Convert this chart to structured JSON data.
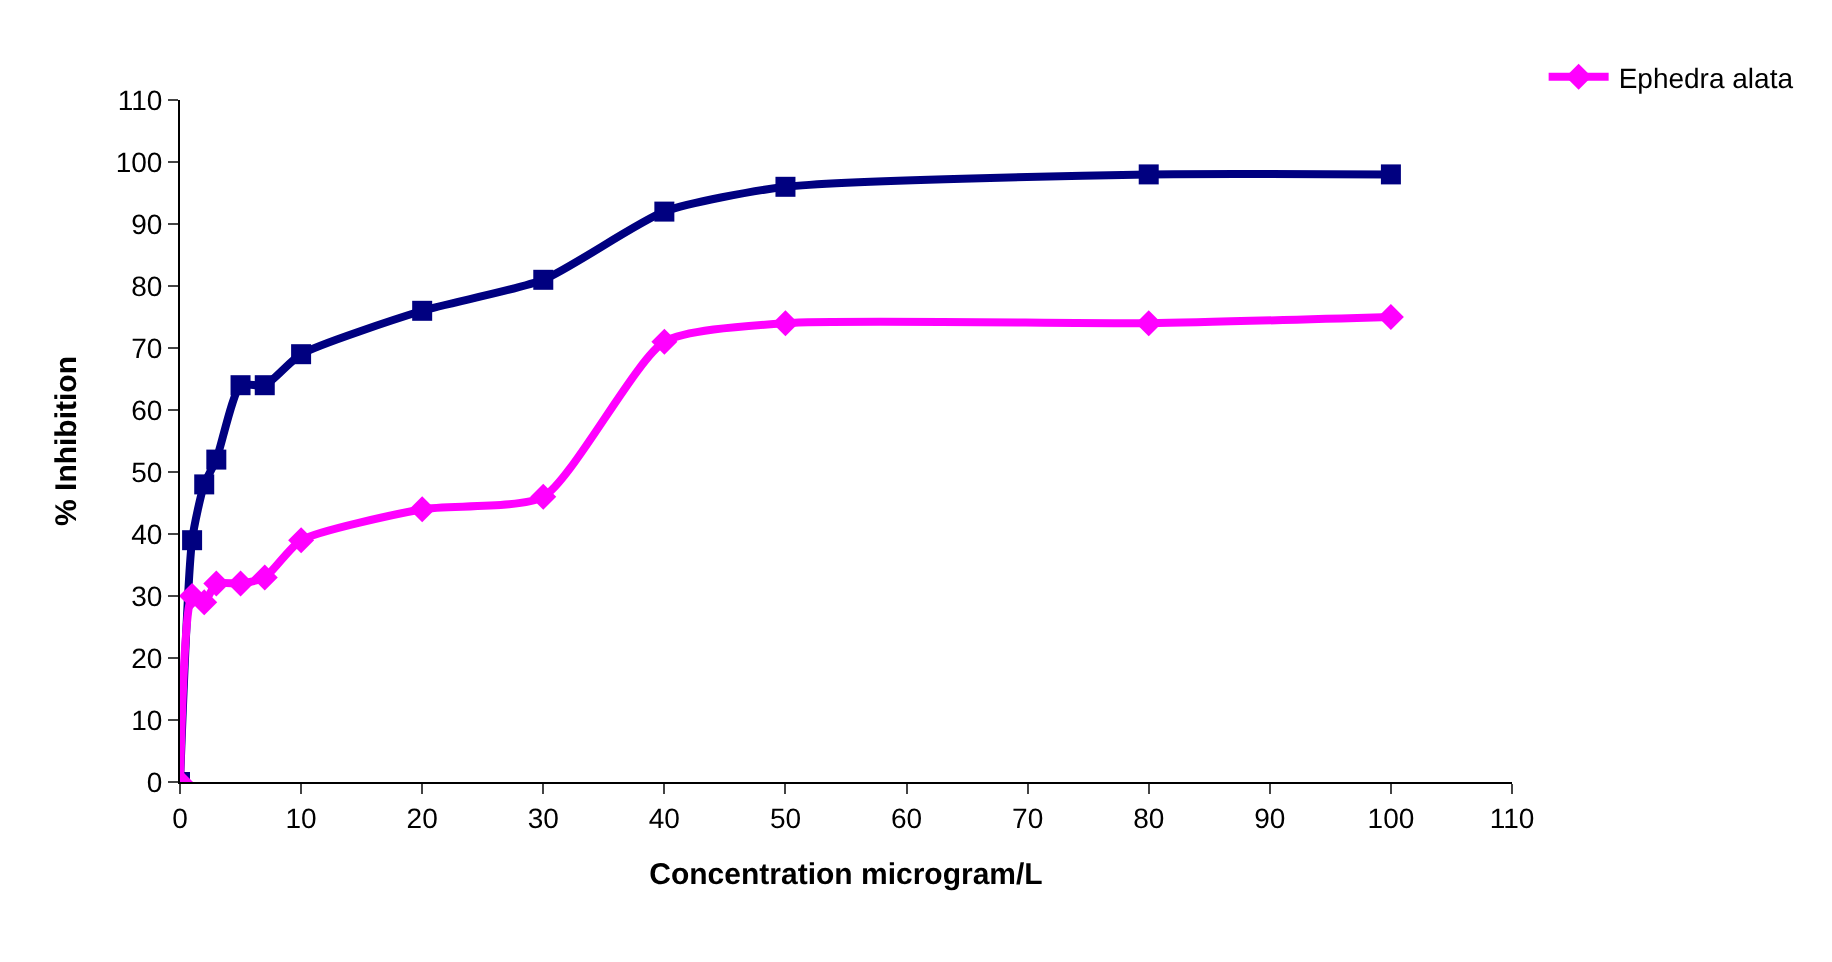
{
  "chart_data": {
    "type": "line",
    "xlabel": "Concentration microgram/L",
    "ylabel": "% Inhibition",
    "x": [
      0,
      1,
      2,
      3,
      5,
      7,
      10,
      20,
      30,
      40,
      50,
      80,
      100
    ],
    "series": [
      {
        "color": "#000080",
        "marker": "square",
        "values": [
          0,
          39,
          48,
          52,
          64,
          64,
          69,
          76,
          81,
          92,
          96,
          98,
          98
        ]
      },
      {
        "name": "Ephedra alata",
        "color": "#ff00ff",
        "marker": "diamond",
        "values": [
          0,
          30,
          29,
          32,
          32,
          33,
          39,
          44,
          46,
          71,
          74,
          74,
          75
        ]
      }
    ],
    "xlim": [
      0,
      110
    ],
    "xticks": [
      0,
      10,
      20,
      30,
      40,
      50,
      60,
      70,
      80,
      90,
      100,
      110
    ],
    "ylim": [
      0,
      110
    ],
    "yticks": [
      0,
      10,
      20,
      30,
      40,
      50,
      60,
      70,
      80,
      90,
      100,
      110
    ],
    "legend": "top right",
    "line_style": "solid"
  }
}
